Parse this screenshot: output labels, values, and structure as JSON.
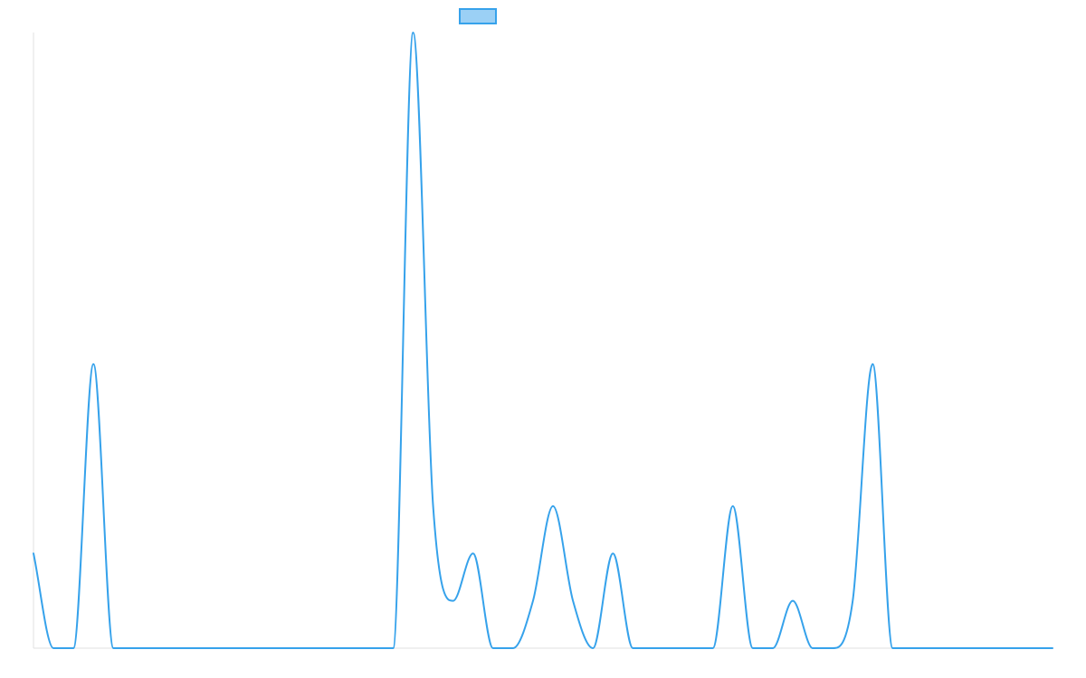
{
  "chart_data": {
    "type": "line",
    "title": "",
    "xlabel": "",
    "ylabel": "",
    "grid": false,
    "legend": {
      "position": "top-center",
      "swatch_fill": "#9BD0F5",
      "swatch_border": "#36A2EB"
    },
    "line_color": "#36A2EB",
    "axis_color": "#E0E0E0",
    "x": [
      0,
      1,
      2,
      3,
      4,
      5,
      6,
      7,
      8,
      9,
      10,
      11,
      12,
      13,
      14,
      15,
      16,
      17,
      18,
      19,
      20,
      21,
      22,
      23,
      24,
      25,
      26,
      27,
      28,
      29,
      30,
      31,
      32,
      33,
      34,
      35,
      36,
      37,
      38,
      39,
      40,
      41,
      42,
      43,
      44,
      45,
      46,
      47,
      48,
      49,
      50,
      51
    ],
    "values": [
      2,
      0,
      0,
      6,
      0,
      0,
      0,
      0,
      0,
      0,
      0,
      0,
      0,
      0,
      0,
      0,
      0,
      0,
      0,
      13,
      3,
      1,
      2,
      0,
      0,
      1,
      3,
      1,
      0,
      2,
      0,
      0,
      0,
      0,
      0,
      3,
      0,
      0,
      1,
      0,
      0,
      1,
      6,
      0,
      0,
      0,
      0,
      0,
      0,
      0,
      0,
      0
    ],
    "ylim": [
      0,
      13
    ]
  }
}
